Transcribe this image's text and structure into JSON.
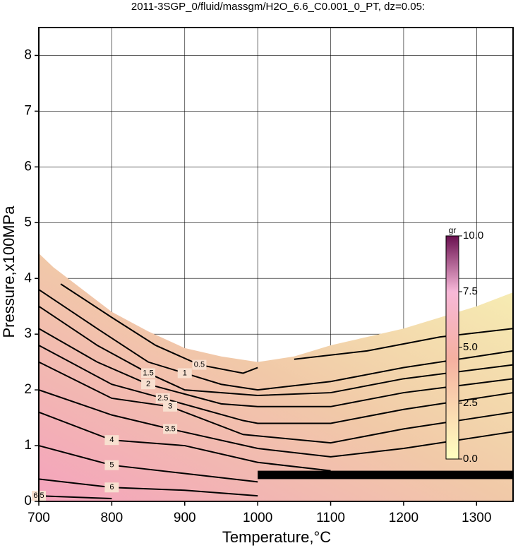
{
  "chart_data": {
    "type": "contour",
    "title": "2011-3SGP_0/fluid/massgm/H2O_6.6_C0.001_0_PT, dz=0.05:",
    "x_label": "Temperature,°C",
    "y_label": "Pressure,x100MPa",
    "xlim": [
      700,
      1350
    ],
    "ylim": [
      0,
      8.5
    ],
    "xticks": [
      700,
      800,
      900,
      1000,
      1100,
      1200,
      1300
    ],
    "yticks": [
      0,
      1,
      2,
      3,
      4,
      5,
      6,
      7,
      8
    ],
    "grid": true,
    "domain": {
      "x": [
        700,
        720,
        750,
        800,
        850,
        900,
        950,
        1000,
        1050,
        1100,
        1150,
        1200,
        1250,
        1300,
        1350
      ],
      "y": [
        4.45,
        4.2,
        3.9,
        3.4,
        3.05,
        2.75,
        2.6,
        2.5,
        2.6,
        2.8,
        2.95,
        3.1,
        3.3,
        3.5,
        3.75
      ]
    },
    "contours": [
      {
        "level": 0.5,
        "x": [
          730,
          800,
          860,
          920,
          980,
          1000,
          null,
          1050,
          1150,
          1250,
          1350
        ],
        "y": [
          3.9,
          3.3,
          2.8,
          2.45,
          2.3,
          2.4,
          null,
          2.55,
          2.7,
          2.95,
          3.1
        ]
      },
      {
        "level": 1,
        "x": [
          700,
          780,
          850,
          900,
          950,
          1000,
          1100,
          1200,
          1350
        ],
        "y": [
          3.8,
          3.1,
          2.5,
          2.3,
          2.1,
          2.0,
          2.15,
          2.4,
          2.7
        ]
      },
      {
        "level": 1.5,
        "x": [
          700,
          780,
          850,
          900,
          1000,
          1100,
          1200,
          1350
        ],
        "y": [
          3.5,
          2.8,
          2.3,
          2.0,
          1.9,
          1.95,
          2.2,
          2.45
        ]
      },
      {
        "level": 2,
        "x": [
          700,
          780,
          850,
          950,
          1000,
          1100,
          1200,
          1350
        ],
        "y": [
          3.1,
          2.5,
          2.1,
          1.75,
          1.7,
          1.7,
          1.95,
          2.2
        ]
      },
      {
        "level": 2.5,
        "x": [
          700,
          800,
          870,
          980,
          1000,
          1100,
          1200,
          1350
        ],
        "y": [
          2.8,
          2.1,
          1.85,
          1.45,
          1.4,
          1.4,
          1.65,
          1.95
        ]
      },
      {
        "level": 3,
        "x": [
          700,
          800,
          880,
          980,
          1100,
          1200,
          1350
        ],
        "y": [
          2.5,
          1.85,
          1.7,
          1.2,
          1.05,
          1.3,
          1.6
        ]
      },
      {
        "level": 3.5,
        "x": [
          700,
          800,
          880,
          1000,
          1100,
          1200,
          1350
        ],
        "y": [
          2.0,
          1.55,
          1.3,
          0.95,
          0.8,
          0.95,
          1.25
        ]
      },
      {
        "level": 4,
        "x": [
          700,
          800,
          900,
          1000,
          1100
        ],
        "y": [
          1.6,
          1.1,
          1.0,
          0.7,
          0.55
        ]
      },
      {
        "level": 5,
        "x": [
          700,
          800,
          900,
          1000
        ],
        "y": [
          1.0,
          0.65,
          0.5,
          0.35
        ]
      },
      {
        "level": 6,
        "x": [
          700,
          800,
          900,
          1000
        ],
        "y": [
          0.4,
          0.25,
          0.2,
          0.1
        ]
      },
      {
        "level": 6.5,
        "x": [
          700,
          800
        ],
        "y": [
          0.1,
          0.05
        ]
      }
    ],
    "colorbar": {
      "label": "gr",
      "lim": [
        0,
        10
      ],
      "ticks": [
        {
          "value": 0,
          "label": "0.0"
        },
        {
          "value": 2.5,
          "label": "2.5"
        },
        {
          "value": 5,
          "label": "5.0"
        },
        {
          "value": 7.5,
          "label": "7.5"
        },
        {
          "value": 10,
          "label": "10.0"
        }
      ]
    }
  }
}
